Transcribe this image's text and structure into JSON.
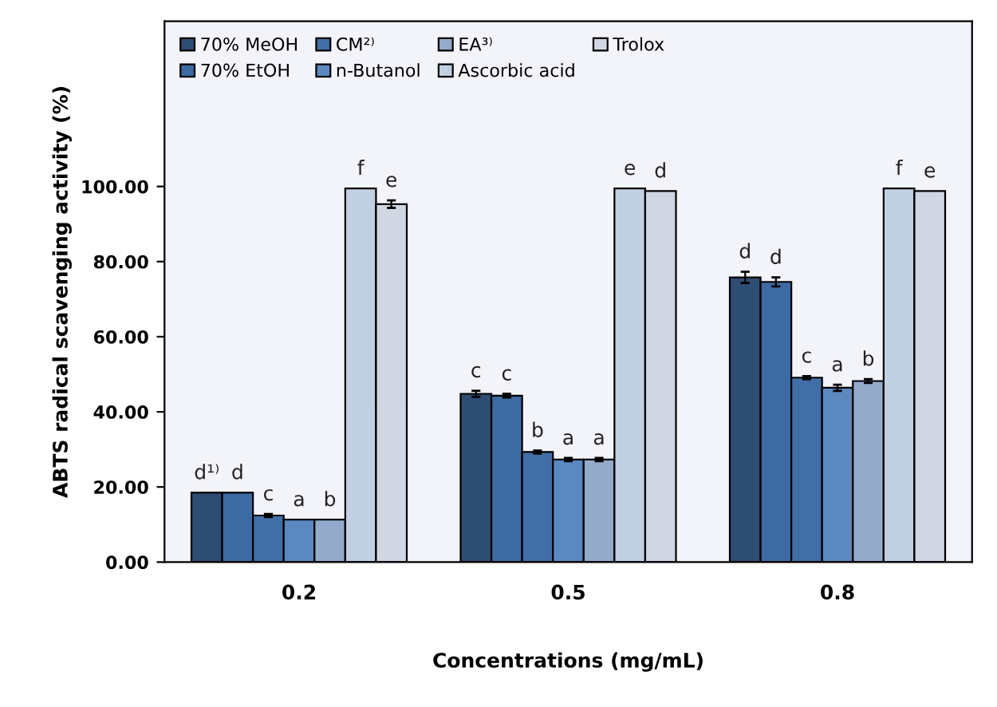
{
  "chart_data": {
    "type": "bar",
    "ylabel": "ABTS radical scavenging activity (%)",
    "xlabel": "Concentrations (mg/mL)",
    "categories": [
      "0.2",
      "0.5",
      "0.8"
    ],
    "ylim": [
      0,
      144
    ],
    "yticks": [
      {
        "value": 0,
        "label": "0.00"
      },
      {
        "value": 20,
        "label": "20.00"
      },
      {
        "value": 40,
        "label": "40.00"
      },
      {
        "value": 60,
        "label": "60.00"
      },
      {
        "value": 80,
        "label": "80.00"
      },
      {
        "value": 100,
        "label": "100.00"
      }
    ],
    "grid": false,
    "legend": "top left",
    "series": [
      {
        "name": "70% MeOH",
        "color": "#2e4d73",
        "values": [
          18.5,
          44.8,
          75.8
        ],
        "errors": [
          null,
          0.8,
          1.5
        ],
        "value_labels": [
          "d¹⁾",
          "c",
          "d"
        ]
      },
      {
        "name": "70% EtOH",
        "color": "#3d6aa3",
        "values": [
          18.5,
          44.3,
          74.6
        ],
        "errors": [
          null,
          0.5,
          1.2
        ],
        "value_labels": [
          "d",
          "c",
          "d"
        ]
      },
      {
        "name": "CM²⁾",
        "color": "#416ea6",
        "values": [
          12.4,
          29.3,
          49.1
        ],
        "errors": [
          0.4,
          0.4,
          0.4
        ],
        "value_labels": [
          "c",
          "b",
          "c"
        ]
      },
      {
        "name": "n-Butanol",
        "color": "#5c88c0",
        "values": [
          11.3,
          27.3,
          46.4
        ],
        "errors": [
          null,
          0.4,
          0.8
        ],
        "value_labels": [
          "a",
          "a",
          "a"
        ]
      },
      {
        "name": "EA³⁾",
        "color": "#94aacb",
        "values": [
          11.3,
          27.3,
          48.2
        ],
        "errors": [
          null,
          0.4,
          0.5
        ],
        "value_labels": [
          "b",
          "a",
          "b"
        ]
      },
      {
        "name": "Ascorbic acid",
        "color": "#c0cfe2",
        "values": [
          99.5,
          99.5,
          99.5
        ],
        "value_labels": [
          "f",
          "e",
          "f"
        ]
      },
      {
        "name": "Trolox",
        "color": "#d0d7e3",
        "values": [
          95.3,
          98.8,
          98.8
        ],
        "errors": [
          1.0,
          null,
          null
        ],
        "value_labels": [
          "e",
          "d",
          "e"
        ]
      }
    ]
  }
}
